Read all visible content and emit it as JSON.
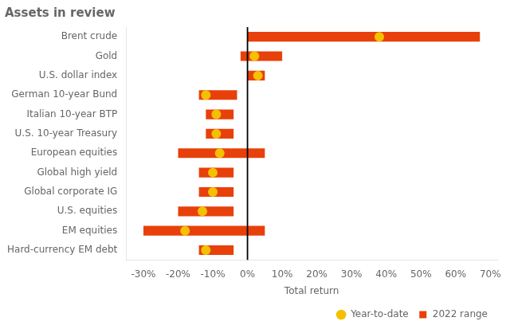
{
  "chart_data": {
    "type": "bar",
    "orientation": "horizontal",
    "title": "Assets in review",
    "xlabel": "Total return",
    "categories": [
      "Brent crude",
      "Gold",
      "U.S. dollar index",
      "German 10-year Bund",
      "Italian 10-year BTP",
      "U.S. 10-year Treasury",
      "European equities",
      "Global high yield",
      "Global corporate IG",
      "U.S. equities",
      "EM equities",
      "Hard-currency EM debt"
    ],
    "series": [
      {
        "name": "2022 range",
        "type": "bar",
        "color": "#E8400A",
        "low": [
          0,
          -2,
          0,
          -14,
          -12,
          -12,
          -20,
          -14,
          -14,
          -20,
          -30,
          -14
        ],
        "high": [
          67,
          10,
          5,
          -3,
          -4,
          -4,
          5,
          -4,
          -4,
          -4,
          5,
          -4
        ]
      },
      {
        "name": "Year-to-date",
        "type": "scatter",
        "marker": "circle",
        "color": "#F5C000",
        "values": [
          38,
          2,
          3,
          -12,
          -9,
          -9,
          -8,
          -10,
          -10,
          -13,
          -18,
          -12
        ]
      }
    ],
    "vlines": [
      0
    ],
    "xlim": [
      -35,
      72
    ],
    "xticks": [
      {
        "value": -30,
        "label": "-30%"
      },
      {
        "value": -20,
        "label": "-20%"
      },
      {
        "value": -10,
        "label": "-10%"
      },
      {
        "value": 0,
        "label": "0%"
      },
      {
        "value": 10,
        "label": "10%"
      },
      {
        "value": 20,
        "label": "20%"
      },
      {
        "value": 30,
        "label": "30%"
      },
      {
        "value": 40,
        "label": "40%"
      },
      {
        "value": 50,
        "label": "50%"
      },
      {
        "value": 60,
        "label": "60%"
      },
      {
        "value": 70,
        "label": "70%"
      }
    ],
    "grid": false,
    "legend": "lower right"
  }
}
